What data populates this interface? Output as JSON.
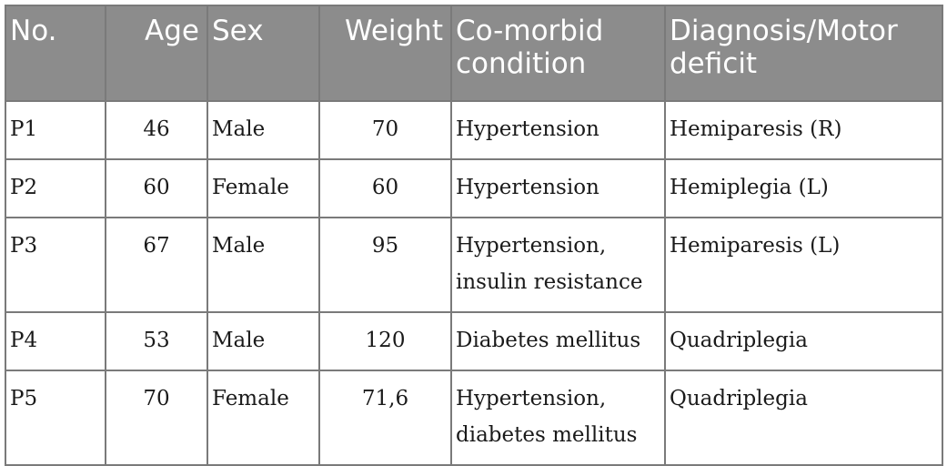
{
  "table": {
    "headers": {
      "no": "No.",
      "age": "Age",
      "sex": "Sex",
      "weight": "Weight",
      "comorbid": "Co-morbid condition",
      "diagnosis": "Diagnosis/Motor deficit"
    },
    "rows": [
      {
        "no": "P1",
        "age": "46",
        "sex": "Male",
        "weight": "70",
        "comorbid": "Hypertension",
        "diagnosis": "Hemiparesis (R)"
      },
      {
        "no": "P2",
        "age": "60",
        "sex": "Female",
        "weight": "60",
        "comorbid": "Hypertension",
        "diagnosis": "Hemiplegia (L)"
      },
      {
        "no": "P3",
        "age": "67",
        "sex": "Male",
        "weight": "95",
        "comorbid": "Hypertension, insulin resistance",
        "diagnosis": "Hemiparesis (L)"
      },
      {
        "no": "P4",
        "age": "53",
        "sex": "Male",
        "weight": "120",
        "comorbid": "Diabetes mellitus",
        "diagnosis": "Quadriplegia"
      },
      {
        "no": "P5",
        "age": "70",
        "sex": "Female",
        "weight": "71,6",
        "comorbid": "Hypertension, diabetes mellitus",
        "diagnosis": "Quadriplegia"
      }
    ]
  }
}
